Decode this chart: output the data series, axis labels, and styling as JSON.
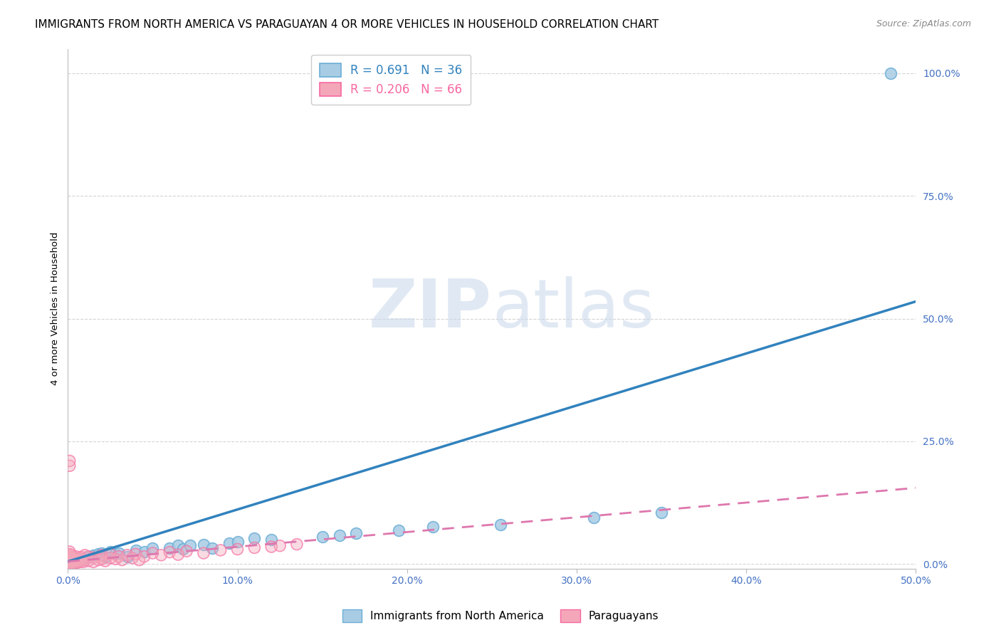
{
  "title": "IMMIGRANTS FROM NORTH AMERICA VS PARAGUAYAN 4 OR MORE VEHICLES IN HOUSEHOLD CORRELATION CHART",
  "source": "Source: ZipAtlas.com",
  "ylabel": "4 or more Vehicles in Household",
  "watermark_zip": "ZIP",
  "watermark_atlas": "atlas",
  "xlim": [
    0.0,
    0.5
  ],
  "ylim": [
    -0.01,
    1.05
  ],
  "xticks": [
    0.0,
    0.1,
    0.2,
    0.3,
    0.4,
    0.5
  ],
  "xticklabels": [
    "0.0%",
    "10.0%",
    "20.0%",
    "30.0%",
    "40.0%",
    "50.0%"
  ],
  "yticks": [
    0.0,
    0.25,
    0.5,
    0.75,
    1.0
  ],
  "yticklabels": [
    "0.0%",
    "25.0%",
    "50.0%",
    "75.0%",
    "100.0%"
  ],
  "blue_R": 0.691,
  "blue_N": 36,
  "pink_R": 0.206,
  "pink_N": 66,
  "blue_color": "#a8cce4",
  "pink_color": "#f4a7b9",
  "blue_edge_color": "#6baed6",
  "pink_edge_color": "#f768a1",
  "blue_line_color": "#3182bd",
  "pink_line_color": "#de77ae",
  "blue_scatter": [
    [
      0.001,
      0.005
    ],
    [
      0.003,
      0.008
    ],
    [
      0.005,
      0.006
    ],
    [
      0.007,
      0.01
    ],
    [
      0.01,
      0.012
    ],
    [
      0.012,
      0.015
    ],
    [
      0.015,
      0.018
    ],
    [
      0.018,
      0.02
    ],
    [
      0.02,
      0.022
    ],
    [
      0.022,
      0.015
    ],
    [
      0.025,
      0.025
    ],
    [
      0.028,
      0.02
    ],
    [
      0.03,
      0.022
    ],
    [
      0.035,
      0.015
    ],
    [
      0.04,
      0.028
    ],
    [
      0.045,
      0.025
    ],
    [
      0.05,
      0.032
    ],
    [
      0.06,
      0.032
    ],
    [
      0.065,
      0.038
    ],
    [
      0.068,
      0.03
    ],
    [
      0.072,
      0.038
    ],
    [
      0.08,
      0.04
    ],
    [
      0.085,
      0.032
    ],
    [
      0.095,
      0.042
    ],
    [
      0.1,
      0.045
    ],
    [
      0.11,
      0.052
    ],
    [
      0.12,
      0.05
    ],
    [
      0.15,
      0.055
    ],
    [
      0.16,
      0.058
    ],
    [
      0.17,
      0.062
    ],
    [
      0.195,
      0.068
    ],
    [
      0.215,
      0.075
    ],
    [
      0.255,
      0.08
    ],
    [
      0.31,
      0.095
    ],
    [
      0.35,
      0.105
    ],
    [
      0.485,
      1.0
    ]
  ],
  "pink_scatter": [
    [
      0.0,
      0.002
    ],
    [
      0.0,
      0.005
    ],
    [
      0.0,
      0.008
    ],
    [
      0.001,
      0.0
    ],
    [
      0.001,
      0.003
    ],
    [
      0.001,
      0.006
    ],
    [
      0.001,
      0.01
    ],
    [
      0.001,
      0.015
    ],
    [
      0.001,
      0.02
    ],
    [
      0.001,
      0.025
    ],
    [
      0.001,
      0.2
    ],
    [
      0.001,
      0.21
    ],
    [
      0.002,
      0.0
    ],
    [
      0.002,
      0.003
    ],
    [
      0.002,
      0.007
    ],
    [
      0.002,
      0.012
    ],
    [
      0.002,
      0.018
    ],
    [
      0.003,
      0.0
    ],
    [
      0.003,
      0.004
    ],
    [
      0.003,
      0.009
    ],
    [
      0.003,
      0.014
    ],
    [
      0.004,
      0.002
    ],
    [
      0.004,
      0.007
    ],
    [
      0.004,
      0.012
    ],
    [
      0.005,
      0.004
    ],
    [
      0.005,
      0.009
    ],
    [
      0.005,
      0.015
    ],
    [
      0.006,
      0.003
    ],
    [
      0.006,
      0.008
    ],
    [
      0.007,
      0.005
    ],
    [
      0.007,
      0.012
    ],
    [
      0.008,
      0.007
    ],
    [
      0.008,
      0.014
    ],
    [
      0.009,
      0.004
    ],
    [
      0.01,
      0.008
    ],
    [
      0.01,
      0.018
    ],
    [
      0.012,
      0.006
    ],
    [
      0.012,
      0.015
    ],
    [
      0.015,
      0.004
    ],
    [
      0.015,
      0.013
    ],
    [
      0.018,
      0.008
    ],
    [
      0.02,
      0.01
    ],
    [
      0.02,
      0.018
    ],
    [
      0.022,
      0.006
    ],
    [
      0.025,
      0.012
    ],
    [
      0.025,
      0.02
    ],
    [
      0.028,
      0.01
    ],
    [
      0.03,
      0.015
    ],
    [
      0.032,
      0.008
    ],
    [
      0.035,
      0.018
    ],
    [
      0.038,
      0.012
    ],
    [
      0.04,
      0.02
    ],
    [
      0.042,
      0.008
    ],
    [
      0.045,
      0.015
    ],
    [
      0.05,
      0.022
    ],
    [
      0.055,
      0.018
    ],
    [
      0.06,
      0.024
    ],
    [
      0.065,
      0.019
    ],
    [
      0.07,
      0.026
    ],
    [
      0.08,
      0.022
    ],
    [
      0.09,
      0.028
    ],
    [
      0.1,
      0.03
    ],
    [
      0.11,
      0.033
    ],
    [
      0.12,
      0.035
    ],
    [
      0.125,
      0.037
    ],
    [
      0.135,
      0.04
    ]
  ],
  "blue_line_x": [
    0.0,
    0.5
  ],
  "blue_line_y": [
    0.005,
    0.535
  ],
  "pink_line_x": [
    0.0,
    0.5
  ],
  "pink_line_y": [
    0.005,
    0.155
  ],
  "legend_labels": [
    "Immigrants from North America",
    "Paraguayans"
  ],
  "background_color": "#ffffff",
  "grid_color": "#d0d0d0",
  "tick_color": "#4472c4",
  "title_fontsize": 11,
  "axis_label_fontsize": 9.5,
  "tick_fontsize": 10,
  "source_fontsize": 9
}
